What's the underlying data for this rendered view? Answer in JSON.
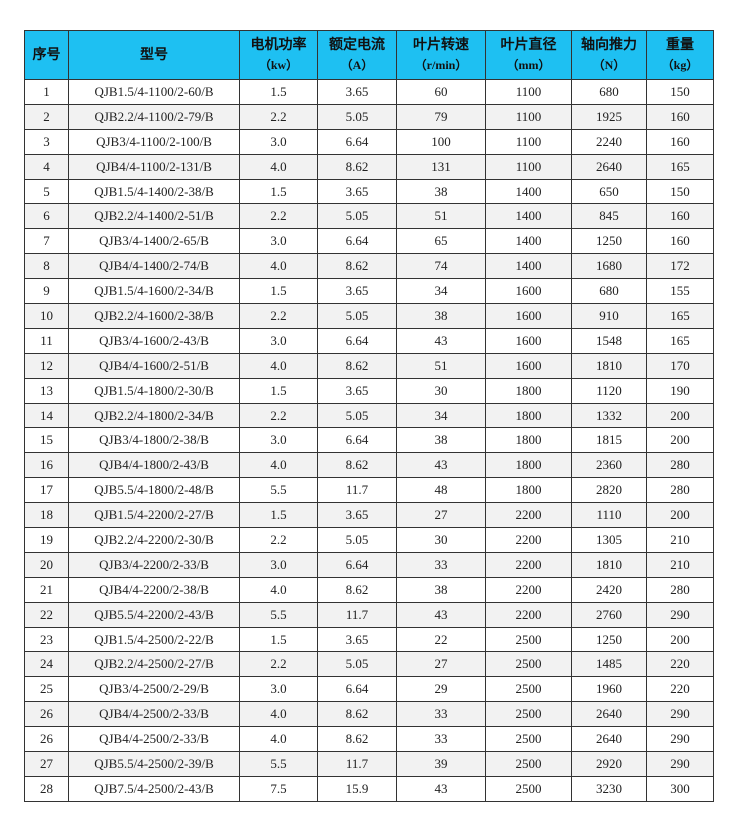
{
  "table": {
    "header_color": "#1ec0f2",
    "columns": [
      {
        "label": "序号",
        "unit": ""
      },
      {
        "label": "型号",
        "unit": ""
      },
      {
        "label": "电机功率",
        "unit": "（kw）"
      },
      {
        "label": "额定电流",
        "unit": "（A）"
      },
      {
        "label": "叶片转速",
        "unit": "（r/min）"
      },
      {
        "label": "叶片直径",
        "unit": "（mm）"
      },
      {
        "label": "轴向推力",
        "unit": "（N）"
      },
      {
        "label": "重量",
        "unit": "（kg）"
      }
    ],
    "rows": [
      [
        "1",
        "QJB1.5/4-1100/2-60/B",
        "1.5",
        "3.65",
        "60",
        "1100",
        "680",
        "150"
      ],
      [
        "2",
        "QJB2.2/4-1100/2-79/B",
        "2.2",
        "5.05",
        "79",
        "1100",
        "1925",
        "160"
      ],
      [
        "3",
        "QJB3/4-1100/2-100/B",
        "3.0",
        "6.64",
        "100",
        "1100",
        "2240",
        "160"
      ],
      [
        "4",
        "QJB4/4-1100/2-131/B",
        "4.0",
        "8.62",
        "131",
        "1100",
        "2640",
        "165"
      ],
      [
        "5",
        "QJB1.5/4-1400/2-38/B",
        "1.5",
        "3.65",
        "38",
        "1400",
        "650",
        "150"
      ],
      [
        "6",
        "QJB2.2/4-1400/2-51/B",
        "2.2",
        "5.05",
        "51",
        "1400",
        "845",
        "160"
      ],
      [
        "7",
        "QJB3/4-1400/2-65/B",
        "3.0",
        "6.64",
        "65",
        "1400",
        "1250",
        "160"
      ],
      [
        "8",
        "QJB4/4-1400/2-74/B",
        "4.0",
        "8.62",
        "74",
        "1400",
        "1680",
        "172"
      ],
      [
        "9",
        "QJB1.5/4-1600/2-34/B",
        "1.5",
        "3.65",
        "34",
        "1600",
        "680",
        "155"
      ],
      [
        "10",
        "QJB2.2/4-1600/2-38/B",
        "2.2",
        "5.05",
        "38",
        "1600",
        "910",
        "165"
      ],
      [
        "11",
        "QJB3/4-1600/2-43/B",
        "3.0",
        "6.64",
        "43",
        "1600",
        "1548",
        "165"
      ],
      [
        "12",
        "QJB4/4-1600/2-51/B",
        "4.0",
        "8.62",
        "51",
        "1600",
        "1810",
        "170"
      ],
      [
        "13",
        "QJB1.5/4-1800/2-30/B",
        "1.5",
        "3.65",
        "30",
        "1800",
        "1120",
        "190"
      ],
      [
        "14",
        "QJB2.2/4-1800/2-34/B",
        "2.2",
        "5.05",
        "34",
        "1800",
        "1332",
        "200"
      ],
      [
        "15",
        "QJB3/4-1800/2-38/B",
        "3.0",
        "6.64",
        "38",
        "1800",
        "1815",
        "200"
      ],
      [
        "16",
        "QJB4/4-1800/2-43/B",
        "4.0",
        "8.62",
        "43",
        "1800",
        "2360",
        "280"
      ],
      [
        "17",
        "QJB5.5/4-1800/2-48/B",
        "5.5",
        "11.7",
        "48",
        "1800",
        "2820",
        "280"
      ],
      [
        "18",
        "QJB1.5/4-2200/2-27/B",
        "1.5",
        "3.65",
        "27",
        "2200",
        "1110",
        "200"
      ],
      [
        "19",
        "QJB2.2/4-2200/2-30/B",
        "2.2",
        "5.05",
        "30",
        "2200",
        "1305",
        "210"
      ],
      [
        "20",
        "QJB3/4-2200/2-33/B",
        "3.0",
        "6.64",
        "33",
        "2200",
        "1810",
        "210"
      ],
      [
        "21",
        "QJB4/4-2200/2-38/B",
        "4.0",
        "8.62",
        "38",
        "2200",
        "2420",
        "280"
      ],
      [
        "22",
        "QJB5.5/4-2200/2-43/B",
        "5.5",
        "11.7",
        "43",
        "2200",
        "2760",
        "290"
      ],
      [
        "23",
        "QJB1.5/4-2500/2-22/B",
        "1.5",
        "3.65",
        "22",
        "2500",
        "1250",
        "200"
      ],
      [
        "24",
        "QJB2.2/4-2500/2-27/B",
        "2.2",
        "5.05",
        "27",
        "2500",
        "1485",
        "220"
      ],
      [
        "25",
        "QJB3/4-2500/2-29/B",
        "3.0",
        "6.64",
        "29",
        "2500",
        "1960",
        "220"
      ],
      [
        "26",
        "QJB4/4-2500/2-33/B",
        "4.0",
        "8.62",
        "33",
        "2500",
        "2640",
        "290"
      ],
      [
        "26",
        "QJB4/4-2500/2-33/B",
        "4.0",
        "8.62",
        "33",
        "2500",
        "2640",
        "290"
      ],
      [
        "27",
        "QJB5.5/4-2500/2-39/B",
        "5.5",
        "11.7",
        "39",
        "2500",
        "2920",
        "290"
      ],
      [
        "28",
        "QJB7.5/4-2500/2-43/B",
        "7.5",
        "15.9",
        "43",
        "2500",
        "3230",
        "300"
      ]
    ]
  }
}
